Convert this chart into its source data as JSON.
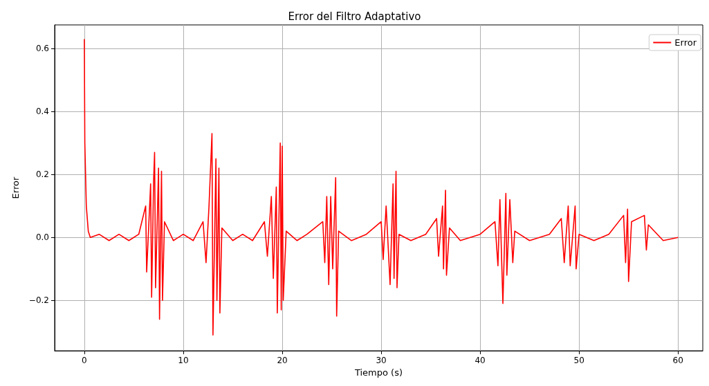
{
  "chart_data": {
    "type": "line",
    "title": "Error del Filtro Adaptativo",
    "xlabel": "Tiempo (s)",
    "ylabel": "Error",
    "series": [
      {
        "name": "Error",
        "color": "#ff0000",
        "x": [
          0,
          0.05,
          0.2,
          0.4,
          0.6,
          1.5,
          2.5,
          3.5,
          4.5,
          5.5,
          6.2,
          6.3,
          6.7,
          6.8,
          7.0,
          7.1,
          7.2,
          7.5,
          7.6,
          7.8,
          7.9,
          8.1,
          9,
          10,
          11,
          12.0,
          12.3,
          12.6,
          12.9,
          13.0,
          13.3,
          13.4,
          13.6,
          13.7,
          13.9,
          15,
          16,
          17,
          18.2,
          18.5,
          18.9,
          19.1,
          19.4,
          19.5,
          19.8,
          19.9,
          20.0,
          20.1,
          20.4,
          21.5,
          22.5,
          24.1,
          24.3,
          24.5,
          24.7,
          24.9,
          25.1,
          25.4,
          25.5,
          25.7,
          27,
          28.5,
          30.0,
          30.2,
          30.5,
          30.9,
          31.2,
          31.3,
          31.5,
          31.6,
          31.8,
          33,
          34.5,
          35.6,
          35.8,
          36.2,
          36.3,
          36.5,
          36.6,
          36.9,
          38,
          40,
          41.5,
          41.8,
          42.0,
          42.3,
          42.6,
          42.7,
          43.0,
          43.3,
          43.5,
          45,
          47,
          48.2,
          48.5,
          48.9,
          49.1,
          49.6,
          49.7,
          50.0,
          51.5,
          53,
          54.5,
          54.7,
          54.9,
          55.0,
          55.3,
          56.6,
          56.8,
          57.0,
          58.5,
          60
        ],
        "values": [
          0.63,
          0.3,
          0.1,
          0.02,
          0,
          0.01,
          -0.01,
          0.01,
          -0.01,
          0.01,
          0.1,
          -0.11,
          0.17,
          -0.19,
          0.18,
          0.27,
          -0.16,
          0.22,
          -0.26,
          0.21,
          -0.2,
          0.05,
          -0.01,
          0.01,
          -0.01,
          0.05,
          -0.08,
          0.1,
          0.33,
          -0.31,
          0.25,
          -0.2,
          0.22,
          -0.24,
          0.03,
          -0.01,
          0.01,
          -0.01,
          0.05,
          -0.06,
          0.13,
          -0.13,
          0.16,
          -0.24,
          0.3,
          -0.23,
          0.29,
          -0.2,
          0.02,
          -0.01,
          0.01,
          0.05,
          -0.08,
          0.13,
          -0.15,
          0.13,
          -0.1,
          0.19,
          -0.25,
          0.02,
          -0.01,
          0.01,
          0.05,
          -0.07,
          0.1,
          -0.15,
          0.17,
          -0.13,
          0.21,
          -0.16,
          0.01,
          -0.01,
          0.01,
          0.06,
          -0.06,
          0.1,
          -0.1,
          0.15,
          -0.12,
          0.03,
          -0.01,
          0.01,
          0.05,
          -0.09,
          0.12,
          -0.21,
          0.14,
          -0.12,
          0.12,
          -0.08,
          0.02,
          -0.01,
          0.01,
          0.06,
          -0.08,
          0.1,
          -0.09,
          0.1,
          -0.1,
          0.01,
          -0.01,
          0.01,
          0.07,
          -0.08,
          0.09,
          -0.14,
          0.05,
          0.07,
          -0.04,
          0.04,
          -0.01,
          0
        ]
      }
    ],
    "xlim": [
      -3,
      62.5
    ],
    "ylim": [
      -0.36,
      0.675
    ],
    "xticks": [
      0,
      10,
      20,
      30,
      40,
      50,
      60
    ],
    "yticks": [
      {
        "value": -0.2,
        "label": "−0.2"
      },
      {
        "value": 0,
        "label": "0.0"
      },
      {
        "value": 0.2,
        "label": "0.2"
      },
      {
        "value": 0.4,
        "label": "0.4"
      },
      {
        "value": 0.6,
        "label": "0.6"
      }
    ],
    "grid": true,
    "legend": "top right",
    "marker": "none",
    "line_style": "solid"
  }
}
